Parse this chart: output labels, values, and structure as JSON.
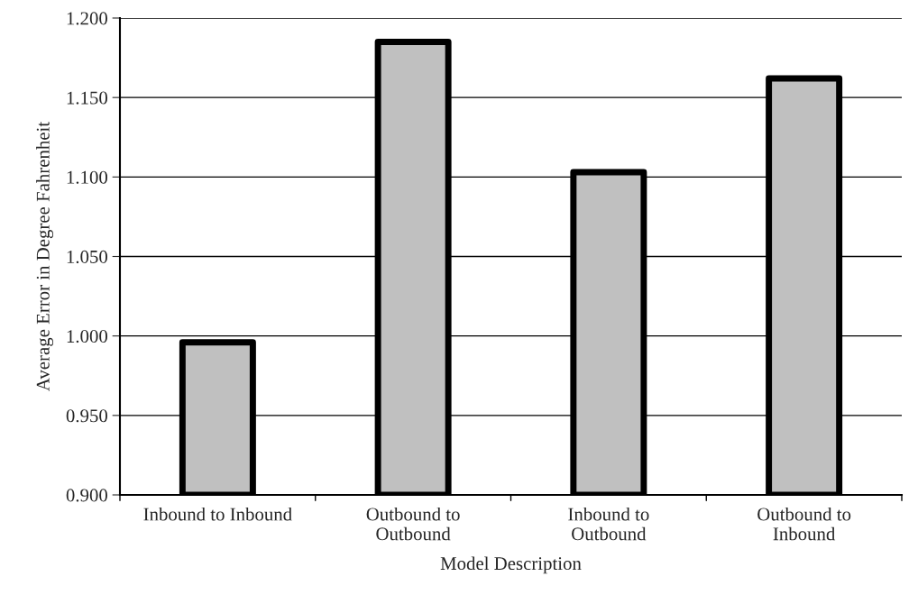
{
  "chart_data": {
    "type": "bar",
    "xlabel": "Model Description",
    "ylabel": "Average Error in Degree Fahrenheit",
    "categories": [
      "Inbound to Inbound",
      "Outbound to\nOutbound",
      "Inbound to\nOutbound",
      "Outbound to\nInbound"
    ],
    "values": [
      0.996,
      1.185,
      1.103,
      1.162
    ],
    "color": "#c0c0c0",
    "ylim": [
      0.9,
      1.2
    ],
    "yticks": [
      {
        "value": 0.9,
        "label": "0.900"
      },
      {
        "value": 0.95,
        "label": "0.950"
      },
      {
        "value": 1.0,
        "label": "1.000"
      },
      {
        "value": 1.05,
        "label": "1.050"
      },
      {
        "value": 1.1,
        "label": "1.100"
      },
      {
        "value": 1.15,
        "label": "1.150"
      },
      {
        "value": 1.2,
        "label": "1.200"
      }
    ],
    "grid": "y"
  }
}
